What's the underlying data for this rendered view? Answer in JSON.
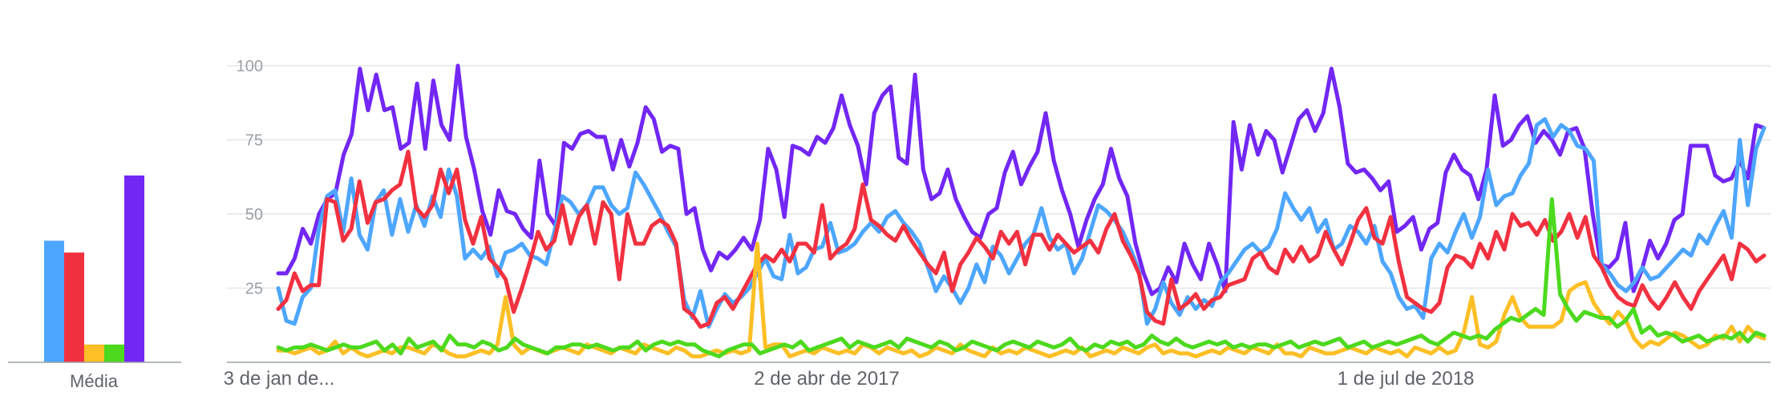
{
  "colors": {
    "blue": "#4da6ff",
    "red": "#f23140",
    "yellow": "#fcbf25",
    "green": "#4cd91e",
    "purple": "#7227f5",
    "grid": "#e4e6ea",
    "axis": "#9aa0a6"
  },
  "chart_data": [
    {
      "type": "bar",
      "xlabel": "Média",
      "ylim": [
        0,
        100
      ],
      "series": [
        {
          "color": "#4da6ff",
          "values": [
            41
          ]
        },
        {
          "color": "#f23140",
          "values": [
            37
          ]
        },
        {
          "color": "#fcbf25",
          "values": [
            6
          ]
        },
        {
          "color": "#4cd91e",
          "values": [
            6
          ]
        },
        {
          "color": "#7227f5",
          "values": [
            63
          ]
        }
      ]
    },
    {
      "type": "line",
      "ylim": [
        0,
        100
      ],
      "y_ticks": [
        25,
        50,
        75,
        100
      ],
      "x_tick_labels": [
        "3 de jan de...",
        "2 de abr de 2017",
        "1 de jul de 2018"
      ],
      "grid": true,
      "series": [
        {
          "color": "#7227f5",
          "values": [
            30,
            30,
            35,
            45,
            40,
            50,
            55,
            57,
            70,
            77,
            99,
            85,
            97,
            85,
            86,
            72,
            74,
            94,
            72,
            95,
            80,
            75,
            100,
            76,
            65,
            51,
            43,
            58,
            51,
            50,
            45,
            42,
            68,
            50,
            46,
            74,
            72,
            77,
            78,
            76,
            76,
            65,
            75,
            66,
            74,
            86,
            82,
            71,
            73,
            72,
            50,
            52,
            38,
            31,
            37,
            35,
            38,
            42,
            38,
            48,
            72,
            65,
            49,
            73,
            72,
            70,
            76,
            74,
            79,
            90,
            80,
            73,
            60,
            84,
            90,
            93,
            69,
            67,
            97,
            65,
            55,
            57,
            65,
            55,
            49,
            44,
            42,
            50,
            52,
            64,
            71,
            60,
            66,
            71,
            84,
            68,
            58,
            50,
            39,
            48,
            55,
            60,
            72,
            62,
            56,
            40,
            30,
            23,
            25,
            32,
            27,
            40,
            33,
            28,
            40,
            33,
            24,
            81,
            65,
            80,
            70,
            78,
            75,
            64,
            73,
            82,
            85,
            78,
            84,
            99,
            86,
            67,
            64,
            65,
            62,
            58,
            61,
            44,
            46,
            49,
            38,
            45,
            47,
            64,
            70,
            65,
            63,
            55,
            65,
            90,
            73,
            75,
            80,
            83,
            74,
            78,
            75,
            70,
            78,
            79,
            72,
            50,
            33,
            32,
            35,
            47,
            24,
            31,
            41,
            35,
            40,
            48,
            50,
            73,
            73,
            73,
            63,
            61,
            62,
            68,
            62,
            80,
            79
          ]
        },
        {
          "color": "#4da6ff",
          "values": [
            25,
            14,
            13,
            22,
            25,
            45,
            56,
            58,
            44,
            62,
            43,
            38,
            54,
            58,
            43,
            55,
            44,
            53,
            46,
            56,
            49,
            65,
            56,
            35,
            38,
            35,
            39,
            29,
            37,
            38,
            40,
            36,
            35,
            33,
            44,
            56,
            54,
            50,
            53,
            59,
            59,
            53,
            50,
            52,
            64,
            60,
            55,
            50,
            44,
            39,
            21,
            15,
            24,
            12,
            18,
            23,
            20,
            22,
            25,
            30,
            35,
            29,
            28,
            43,
            30,
            32,
            38,
            39,
            47,
            37,
            38,
            40,
            44,
            47,
            44,
            49,
            51,
            47,
            44,
            40,
            32,
            24,
            29,
            25,
            20,
            25,
            33,
            27,
            39,
            36,
            30,
            35,
            40,
            43,
            52,
            42,
            38,
            40,
            30,
            35,
            44,
            53,
            51,
            48,
            44,
            38,
            31,
            13,
            18,
            27,
            20,
            16,
            22,
            18,
            21,
            19,
            27,
            30,
            34,
            38,
            40,
            37,
            39,
            45,
            57,
            52,
            48,
            52,
            44,
            48,
            38,
            40,
            46,
            44,
            40,
            46,
            34,
            30,
            22,
            18,
            19,
            15,
            35,
            40,
            37,
            44,
            50,
            42,
            49,
            65,
            53,
            56,
            57,
            63,
            67,
            80,
            82,
            76,
            80,
            78,
            73,
            72,
            68,
            33,
            30,
            26,
            24,
            27,
            32,
            28,
            29,
            32,
            35,
            38,
            36,
            43,
            40,
            46,
            51,
            42,
            75,
            53,
            72,
            79
          ]
        },
        {
          "color": "#f23140",
          "values": [
            18,
            21,
            30,
            24,
            26,
            26,
            55,
            54,
            41,
            45,
            61,
            47,
            54,
            55,
            58,
            60,
            71,
            52,
            49,
            53,
            65,
            57,
            65,
            48,
            40,
            49,
            35,
            32,
            28,
            17,
            25,
            34,
            44,
            38,
            41,
            53,
            40,
            49,
            53,
            40,
            54,
            50,
            28,
            50,
            40,
            40,
            46,
            48,
            46,
            40,
            18,
            16,
            12,
            13,
            20,
            22,
            18,
            23,
            28,
            33,
            36,
            34,
            38,
            34,
            40,
            40,
            37,
            53,
            35,
            38,
            40,
            45,
            60,
            48,
            46,
            43,
            41,
            46,
            41,
            37,
            33,
            30,
            37,
            24,
            33,
            37,
            42,
            39,
            35,
            44,
            40,
            44,
            33,
            43,
            43,
            38,
            43,
            40,
            37,
            39,
            41,
            37,
            45,
            50,
            41,
            36,
            30,
            17,
            14,
            13,
            28,
            18,
            20,
            23,
            18,
            21,
            22,
            26,
            27,
            28,
            35,
            37,
            32,
            30,
            38,
            34,
            39,
            34,
            36,
            44,
            38,
            33,
            40,
            48,
            52,
            42,
            40,
            49,
            34,
            22,
            20,
            18,
            17,
            20,
            32,
            36,
            35,
            32,
            40,
            35,
            44,
            38,
            50,
            46,
            47,
            43,
            48,
            41,
            44,
            50,
            42,
            49,
            36,
            32,
            26,
            22,
            20,
            19,
            26,
            21,
            18,
            22,
            27,
            22,
            18,
            24,
            28,
            32,
            36,
            28,
            40,
            38,
            34,
            36
          ]
        },
        {
          "color": "#fcbf25",
          "values": [
            4,
            4,
            3,
            4,
            5,
            3,
            4,
            7,
            3,
            5,
            3,
            2,
            3,
            4,
            3,
            5,
            5,
            4,
            3,
            6,
            5,
            3,
            2,
            2,
            3,
            4,
            3,
            6,
            22,
            6,
            3,
            5,
            4,
            3,
            4,
            5,
            4,
            3,
            6,
            5,
            4,
            3,
            5,
            4,
            3,
            6,
            5,
            4,
            3,
            5,
            4,
            2,
            2,
            3,
            4,
            3,
            4,
            3,
            4,
            40,
            5,
            6,
            6,
            2,
            3,
            4,
            3,
            5,
            4,
            3,
            4,
            3,
            6,
            5,
            3,
            5,
            4,
            3,
            4,
            2,
            3,
            5,
            4,
            3,
            6,
            4,
            3,
            2,
            5,
            3,
            4,
            3,
            5,
            4,
            3,
            2,
            3,
            4,
            3,
            5,
            2,
            3,
            4,
            3,
            5,
            4,
            3,
            5,
            6,
            3,
            4,
            3,
            3,
            2,
            3,
            4,
            3,
            5,
            4,
            3,
            5,
            4,
            3,
            6,
            3,
            3,
            2,
            5,
            4,
            3,
            3,
            4,
            5,
            4,
            3,
            5,
            4,
            3,
            4,
            2,
            5,
            4,
            3,
            5,
            3,
            4,
            10,
            22,
            6,
            5,
            7,
            16,
            22,
            15,
            12,
            12,
            12,
            12,
            14,
            24,
            26,
            27,
            20,
            16,
            13,
            17,
            14,
            8,
            5,
            7,
            6,
            8,
            10,
            9,
            7,
            5,
            6,
            9,
            8,
            12,
            7,
            12,
            9,
            8
          ]
        },
        {
          "color": "#4cd91e",
          "values": [
            5,
            4,
            5,
            5,
            6,
            5,
            4,
            5,
            6,
            5,
            5,
            6,
            7,
            4,
            6,
            3,
            8,
            5,
            6,
            7,
            4,
            9,
            6,
            6,
            5,
            7,
            6,
            4,
            5,
            8,
            6,
            5,
            4,
            3,
            5,
            5,
            6,
            6,
            5,
            6,
            5,
            4,
            5,
            5,
            7,
            4,
            6,
            7,
            6,
            7,
            6,
            6,
            4,
            3,
            2,
            4,
            5,
            6,
            6,
            3,
            4,
            5,
            6,
            5,
            7,
            4,
            5,
            6,
            7,
            8,
            5,
            7,
            6,
            5,
            6,
            7,
            5,
            8,
            7,
            6,
            5,
            7,
            6,
            4,
            5,
            7,
            6,
            5,
            4,
            6,
            7,
            6,
            5,
            7,
            6,
            5,
            6,
            8,
            5,
            4,
            6,
            5,
            7,
            6,
            7,
            5,
            6,
            9,
            7,
            6,
            8,
            6,
            5,
            6,
            7,
            6,
            7,
            5,
            6,
            5,
            6,
            6,
            5,
            6,
            7,
            5,
            6,
            7,
            6,
            7,
            8,
            5,
            6,
            7,
            5,
            6,
            7,
            6,
            7,
            8,
            9,
            7,
            6,
            8,
            10,
            9,
            8,
            9,
            8,
            11,
            13,
            15,
            14,
            16,
            18,
            16,
            55,
            23,
            18,
            14,
            17,
            16,
            15,
            15,
            12,
            14,
            18,
            10,
            12,
            9,
            10,
            9,
            7,
            8,
            9,
            7,
            8,
            9,
            8,
            10,
            7,
            10,
            9
          ]
        }
      ]
    }
  ]
}
